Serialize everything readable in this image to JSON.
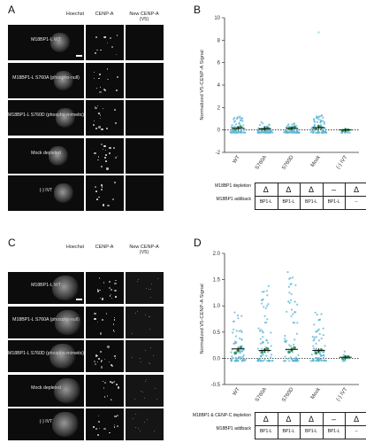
{
  "panels": {
    "a": {
      "label": "A",
      "columns": [
        "Hoechst",
        "CENP-A",
        "New CENP-A (V5)"
      ],
      "rows": [
        "M18BP1-L WT",
        "M18BP1-L S760A (phospho-null)",
        "M18BP1-L S760D (phospho-mimetic)",
        "Mock depleted",
        "(-) IVT"
      ]
    },
    "b": {
      "label": "B"
    },
    "c": {
      "label": "C",
      "columns": [
        "Hoechst",
        "CENP-A",
        "New CENP-A (V5)"
      ],
      "rows": [
        "M18BP1-L WT",
        "M18BP1-L S760A (phospho-null)",
        "M18BP1-L S760D (phospho-mimetic)",
        "Mock depleted",
        "(-) IVT"
      ]
    },
    "d": {
      "label": "D"
    }
  },
  "tables": {
    "b": {
      "row1_label": "M18BP1 depletion",
      "row2_label": "M18BP1 addback",
      "row1": [
        "Δ",
        "Δ",
        "Δ",
        "–",
        "Δ"
      ],
      "row2": [
        "BP1-L",
        "BP1-L",
        "BP1-L",
        "BP1-L",
        "–"
      ]
    },
    "d": {
      "row1_label": "M18BP1 & CENP-C depletion",
      "row2_label": "M18BP1 addback",
      "row1": [
        "Δ",
        "Δ",
        "Δ",
        "–",
        "Δ"
      ],
      "row2": [
        "BP1-L",
        "BP1-L",
        "BP1-L",
        "BP1-L",
        "–"
      ]
    }
  },
  "chart_data": [
    {
      "type": "scatter",
      "panel": "B",
      "title": "",
      "xlabel": "",
      "ylabel": "Normalized V5-CENP-A Signal",
      "categories": [
        "WT",
        "S760A",
        "S760D",
        "Mock",
        "(-) IVT"
      ],
      "ylim": [
        -2,
        10
      ],
      "yticks": [
        -2,
        0,
        2,
        4,
        6,
        8,
        10
      ],
      "reference_line": 0,
      "means": [
        0.15,
        0.1,
        0.15,
        0.2,
        0.0
      ],
      "replicate_means": [
        [
          0.05,
          0.2,
          0.25
        ],
        [
          0.05,
          0.1,
          0.2
        ],
        [
          0.1,
          0.15,
          0.25
        ],
        [
          0.1,
          0.3,
          0.2
        ],
        [
          -0.05,
          0.0,
          0.0
        ]
      ],
      "spread_max": [
        1.3,
        0.7,
        0.6,
        1.5,
        0.05
      ],
      "outliers": [
        {
          "category": "Mock",
          "y": 8.7
        }
      ],
      "colors": {
        "points": "#5ab4d6",
        "replicates": "#3a9a5a",
        "mean": "#111111"
      }
    },
    {
      "type": "scatter",
      "panel": "D",
      "title": "",
      "xlabel": "",
      "ylabel": "Normalized V5-CENP-A Signal",
      "categories": [
        "WT",
        "S760A",
        "S760D",
        "Mock",
        "(-) IVT"
      ],
      "ylim": [
        -0.5,
        2.0
      ],
      "yticks": [
        -0.5,
        0.0,
        0.5,
        1.0,
        1.5,
        2.0
      ],
      "reference_line": 0,
      "means": [
        0.18,
        0.15,
        0.17,
        0.15,
        0.02
      ],
      "replicate_means": [
        [
          0.1,
          0.15,
          0.2
        ],
        [
          0.12,
          0.16,
          0.18
        ],
        [
          0.12,
          0.16,
          0.2
        ],
        [
          0.1,
          0.14,
          0.16
        ],
        [
          0.0,
          0.02,
          0.03
        ]
      ],
      "spread_max": [
        0.9,
        1.4,
        1.75,
        0.9,
        0.15
      ],
      "colors": {
        "points": "#5ab4d6",
        "replicates": "#3a9a5a",
        "mean": "#111111"
      }
    }
  ]
}
